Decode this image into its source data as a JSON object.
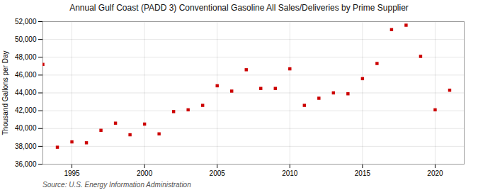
{
  "chart_data": {
    "type": "scatter",
    "title": "Annual Gulf Coast (PADD 3) Conventional Gasoline All Sales/Deliveries by Prime Supplier",
    "ylabel": "Thousand Gallons per Day",
    "source": "Source: U.S. Energy Information Administration",
    "x": [
      1993,
      1994,
      1995,
      1996,
      1997,
      1998,
      1999,
      2000,
      2001,
      2002,
      2003,
      2004,
      2005,
      2006,
      2007,
      2008,
      2009,
      2010,
      2011,
      2012,
      2013,
      2014,
      2015,
      2016,
      2017,
      2018,
      2019,
      2020,
      2021
    ],
    "values": [
      47200,
      37900,
      38500,
      38400,
      39800,
      40600,
      39300,
      40500,
      39400,
      41900,
      42100,
      42600,
      44800,
      44200,
      46600,
      44500,
      44500,
      46700,
      42600,
      43400,
      44000,
      43900,
      45600,
      47300,
      51100,
      51600,
      48100,
      42100,
      44300
    ],
    "color": "#cc0000",
    "marker": "square",
    "xlim": [
      1993.0,
      2022.0
    ],
    "xticks": [
      1995,
      2000,
      2005,
      2010,
      2015,
      2020
    ],
    "ylim": [
      36000,
      52000
    ],
    "yticks": [
      {
        "value": 36000,
        "label": "36,000"
      },
      {
        "value": 38000,
        "label": "38,000"
      },
      {
        "value": 40000,
        "label": "40,000"
      },
      {
        "value": 42000,
        "label": "42,000"
      },
      {
        "value": 44000,
        "label": "44,000"
      },
      {
        "value": 46000,
        "label": "46,000"
      },
      {
        "value": 48000,
        "label": "48,000"
      },
      {
        "value": 50000,
        "label": "50,000"
      },
      {
        "value": 52000,
        "label": "52,000"
      }
    ],
    "grid": true
  }
}
